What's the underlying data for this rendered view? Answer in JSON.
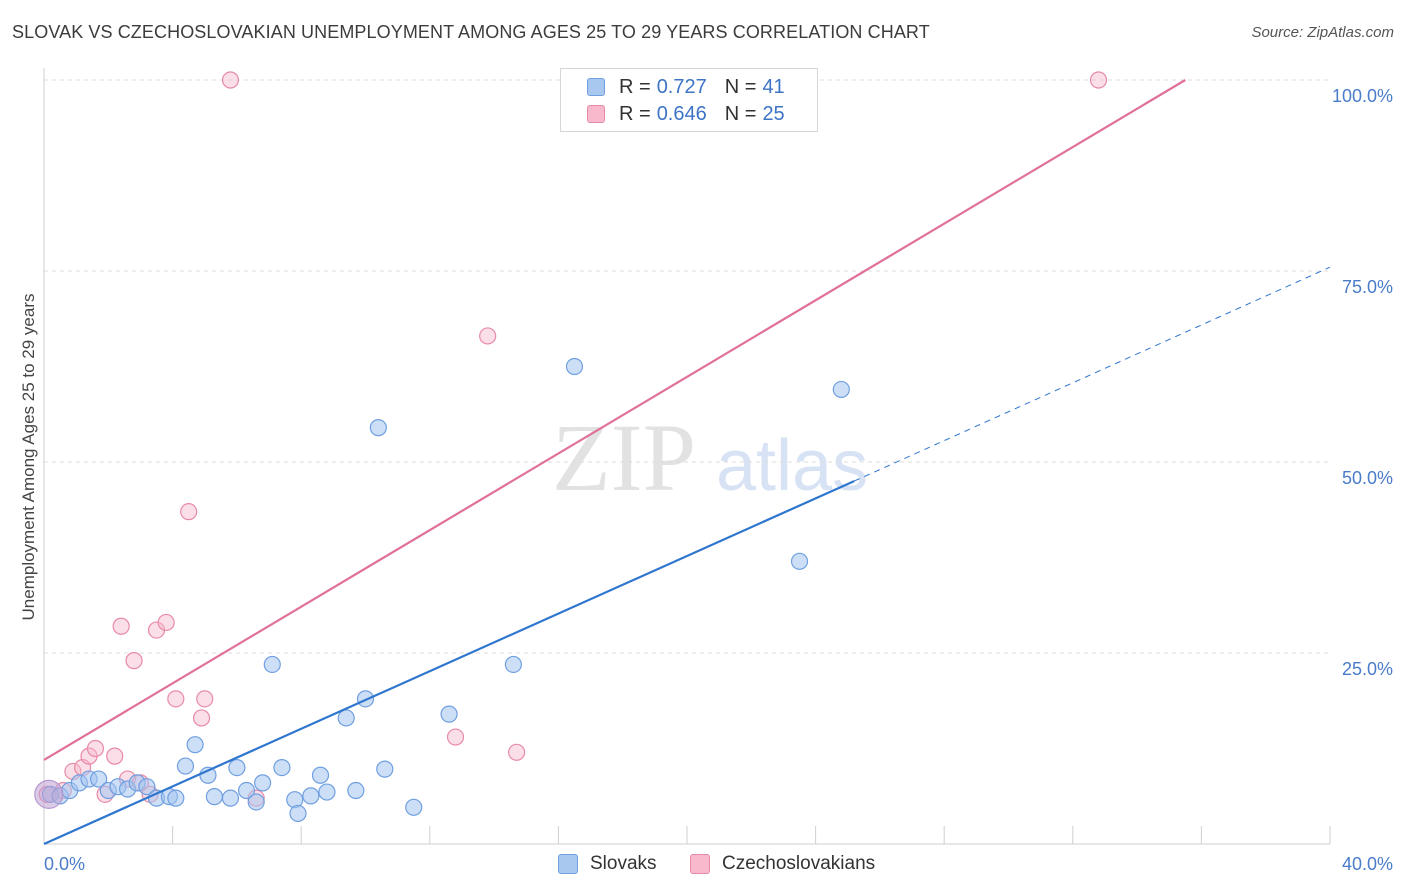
{
  "header": {
    "title": "SLOVAK VS CZECHOSLOVAKIAN UNEMPLOYMENT AMONG AGES 25 TO 29 YEARS CORRELATION CHART",
    "source": "Source: ZipAtlas.com"
  },
  "watermark": {
    "zip": "ZIP",
    "atlas": "atlas"
  },
  "legend": {
    "r_label": "R =",
    "n_label": "N =",
    "rows": [
      {
        "series": "Slovaks",
        "r": "0.727",
        "n": "41",
        "color": "#a9c8f0",
        "border": "#6f9fe0"
      },
      {
        "series": "Czechoslovakians",
        "r": "0.646",
        "n": "25",
        "color": "#f7b9cb",
        "border": "#e88aa6"
      }
    ]
  },
  "colors": {
    "blue_line": "#2f76cf",
    "pink_line": "#e0709a",
    "blue_fill": "rgba(164,196,240,0.55)",
    "blue_stroke": "#6f9fe0",
    "pink_fill": "rgba(247,185,203,0.45)",
    "pink_stroke": "#e88aa6",
    "grid": "#dcdcdc",
    "tick_text": "#4a7cc9"
  },
  "chart_data": {
    "type": "scatter",
    "title": "SLOVAK VS CZECHOSLOVAKIAN UNEMPLOYMENT AMONG AGES 25 TO 29 YEARS CORRELATION CHART",
    "xlabel": "",
    "ylabel": "Unemployment Among Ages 25 to 29 years",
    "xlim": [
      0,
      40
    ],
    "ylim": [
      0,
      100
    ],
    "x_tick_labels": [
      {
        "value": 0,
        "label": "0.0%"
      },
      {
        "value": 40,
        "label": "40.0%"
      }
    ],
    "y_tick_labels": [
      {
        "value": 25,
        "label": "25.0%"
      },
      {
        "value": 50,
        "label": "50.0%"
      },
      {
        "value": 75,
        "label": "75.0%"
      },
      {
        "value": 100,
        "label": "100.0%"
      }
    ],
    "y_gridlines": [
      25,
      50,
      75,
      100
    ],
    "legend_position": "top-center",
    "series": [
      {
        "name": "Slovaks",
        "r": 0.727,
        "n": 41,
        "trend": {
          "x0": 0,
          "y0": 0,
          "x1": 25.2,
          "y1": 47.5,
          "dashed_to_x": 40,
          "dashed_to_y": 75.5
        },
        "points": [
          [
            0.2,
            6.5
          ],
          [
            0.5,
            6.3
          ],
          [
            0.8,
            7.0
          ],
          [
            1.1,
            8.0
          ],
          [
            1.4,
            8.5
          ],
          [
            1.7,
            8.5
          ],
          [
            2.0,
            7.0
          ],
          [
            2.3,
            7.5
          ],
          [
            2.6,
            7.2
          ],
          [
            2.9,
            8.0
          ],
          [
            3.2,
            7.5
          ],
          [
            3.5,
            6.0
          ],
          [
            3.9,
            6.2
          ],
          [
            4.1,
            6.0
          ],
          [
            4.4,
            10.2
          ],
          [
            4.7,
            13.0
          ],
          [
            5.1,
            9.0
          ],
          [
            5.3,
            6.2
          ],
          [
            5.8,
            6.0
          ],
          [
            6.0,
            10.0
          ],
          [
            6.3,
            7.0
          ],
          [
            6.6,
            5.5
          ],
          [
            6.8,
            8.0
          ],
          [
            7.1,
            23.5
          ],
          [
            7.4,
            10.0
          ],
          [
            7.8,
            5.8
          ],
          [
            7.9,
            4.0
          ],
          [
            8.3,
            6.3
          ],
          [
            8.6,
            9.0
          ],
          [
            8.8,
            6.8
          ],
          [
            9.4,
            16.5
          ],
          [
            9.7,
            7.0
          ],
          [
            10.0,
            19.0
          ],
          [
            10.4,
            54.5
          ],
          [
            10.6,
            9.8
          ],
          [
            11.5,
            4.8
          ],
          [
            12.6,
            17.0
          ],
          [
            14.6,
            23.5
          ],
          [
            16.5,
            62.5
          ],
          [
            23.5,
            37.0
          ],
          [
            24.8,
            59.5
          ]
        ]
      },
      {
        "name": "Czechoslovakians",
        "r": 0.646,
        "n": 25,
        "trend": {
          "x0": 0,
          "y0": 11.0,
          "x1": 35.5,
          "y1": 100
        },
        "points": [
          [
            0.1,
            6.5
          ],
          [
            0.6,
            7.0
          ],
          [
            0.9,
            9.5
          ],
          [
            1.2,
            10.0
          ],
          [
            1.4,
            11.5
          ],
          [
            1.6,
            12.5
          ],
          [
            1.9,
            6.5
          ],
          [
            2.2,
            11.5
          ],
          [
            2.4,
            28.5
          ],
          [
            2.6,
            8.5
          ],
          [
            2.8,
            24.0
          ],
          [
            3.0,
            8.0
          ],
          [
            3.3,
            6.5
          ],
          [
            3.5,
            28.0
          ],
          [
            3.8,
            29.0
          ],
          [
            4.1,
            19.0
          ],
          [
            4.5,
            43.5
          ],
          [
            4.9,
            16.5
          ],
          [
            5.0,
            19.0
          ],
          [
            5.8,
            100.0
          ],
          [
            6.6,
            6.0
          ],
          [
            12.8,
            14.0
          ],
          [
            13.8,
            66.5
          ],
          [
            14.7,
            12.0
          ],
          [
            32.8,
            100.0
          ]
        ]
      }
    ]
  }
}
